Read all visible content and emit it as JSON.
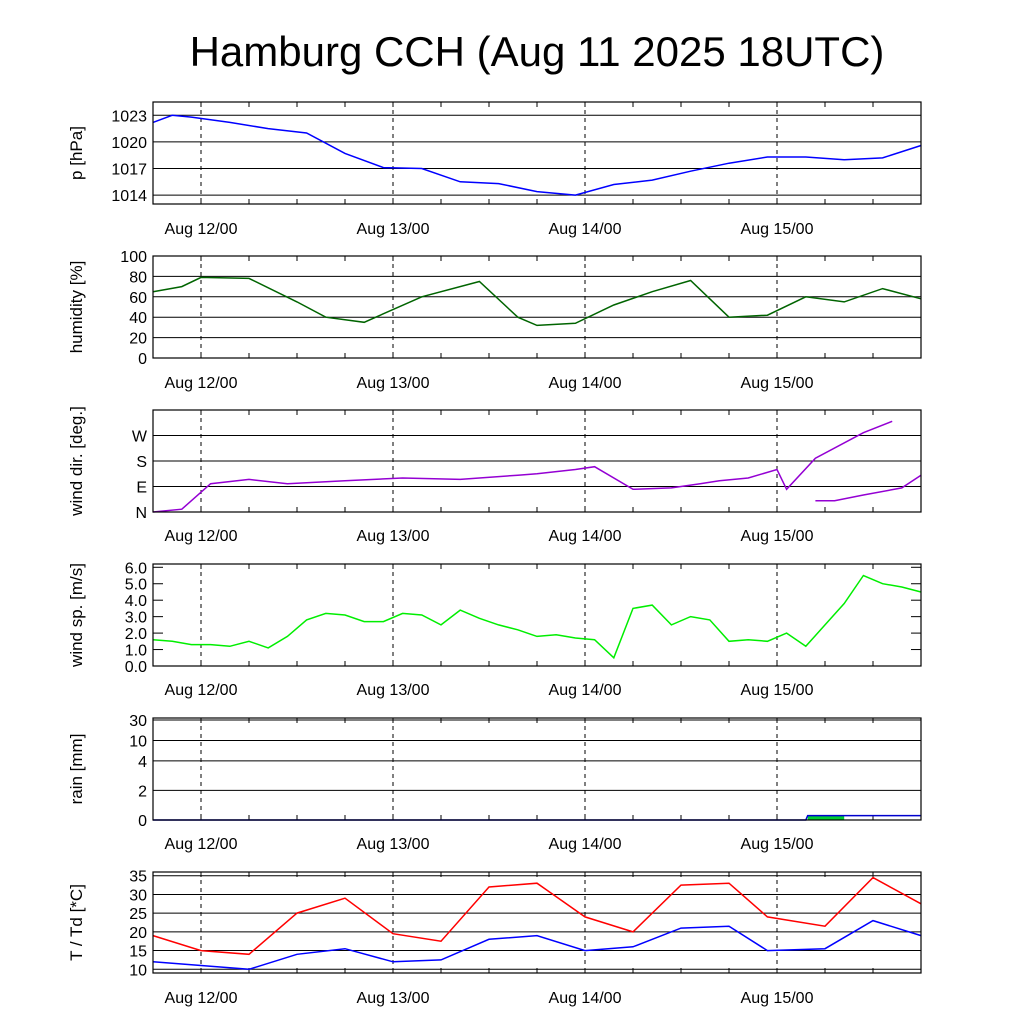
{
  "title": "Hamburg CCH (Aug 11 2025 18UTC)",
  "x_tick_labels": [
    "Aug 12/00",
    "Aug 13/00",
    "Aug 14/00",
    "Aug 15/00"
  ],
  "colors": {
    "pressure": "#0000ff",
    "humidity": "#006400",
    "wind_dir": "#9400d3",
    "wind_speed": "#00ee00",
    "rain_line": "#0000cd",
    "rain_fill": "#00cc33",
    "temperature": "#ff0000",
    "dewpoint": "#0000ff"
  },
  "chart_data": [
    {
      "type": "line",
      "ylabel": "p [hPa]",
      "ylim": [
        1013,
        1024.5
      ],
      "yticks": [
        1014,
        1017,
        1020,
        1023
      ],
      "ytick_labels": [
        "1014",
        "1017",
        "1020",
        "1023"
      ],
      "grid": "horizontal",
      "series": [
        {
          "x": [
            0,
            0.1,
            0.2,
            0.4,
            0.6,
            0.8,
            1.0,
            1.2,
            1.4,
            1.6,
            1.8,
            2.0,
            2.2,
            2.4,
            2.6,
            2.8,
            3.0,
            3.2,
            3.4,
            3.6,
            3.8,
            4.0
          ],
          "y": [
            1022.2,
            1023.0,
            1022.8,
            1022.2,
            1021.5,
            1021.0,
            1018.7,
            1017.1,
            1017.0,
            1015.5,
            1015.3,
            1014.4,
            1014.0,
            1015.2,
            1015.7,
            1016.7,
            1017.6,
            1018.3,
            1018.3,
            1018.0,
            1018.2,
            1019.6
          ]
        }
      ]
    },
    {
      "type": "line",
      "ylabel": "humidity [%]",
      "ylim": [
        0,
        100
      ],
      "yticks": [
        0,
        20,
        40,
        60,
        80,
        100
      ],
      "ytick_labels": [
        "0",
        "20",
        "40",
        "60",
        "80",
        "100"
      ],
      "grid": "horizontal",
      "series": [
        {
          "x": [
            0,
            0.15,
            0.25,
            0.5,
            0.75,
            0.9,
            1.1,
            1.4,
            1.7,
            1.9,
            2.0,
            2.2,
            2.4,
            2.6,
            2.8,
            3.0,
            3.2,
            3.4,
            3.6,
            3.8,
            4.0
          ],
          "y": [
            65,
            70,
            79,
            78,
            55,
            40,
            35,
            60,
            75,
            40,
            32,
            34,
            52,
            65,
            76,
            40,
            42,
            60,
            55,
            68,
            58
          ]
        }
      ]
    },
    {
      "type": "line",
      "ylabel": "wind dir. [deg.]",
      "ylim": [
        0,
        360
      ],
      "yticks": [
        0,
        90,
        180,
        270
      ],
      "ytick_labels": [
        "N",
        "E",
        "S",
        "W"
      ],
      "grid": "horizontal",
      "series": [
        {
          "name": "",
          "x": [
            0,
            0.15,
            0.3,
            0.5,
            0.7,
            1.0,
            1.3,
            1.6,
            1.9,
            2.0,
            2.2,
            2.3,
            2.5,
            2.7,
            2.85,
            2.95,
            3.1,
            3.25,
            3.3,
            3.45,
            3.7,
            3.85
          ],
          "y": [
            0,
            10,
            100,
            115,
            100,
            110,
            120,
            115,
            130,
            135,
            150,
            160,
            80,
            85,
            100,
            110,
            120,
            150,
            80,
            190,
            280,
            320
          ]
        },
        {
          "name": "",
          "x": [
            3.45,
            3.55,
            3.7,
            3.9,
            4.0
          ],
          "y": [
            40,
            40,
            60,
            85,
            130
          ]
        }
      ]
    },
    {
      "type": "line",
      "ylabel": "wind sp. [m/s]",
      "ylim": [
        0,
        6.2
      ],
      "yticks": [
        0,
        1,
        2,
        3,
        4,
        5,
        6
      ],
      "ytick_labels": [
        "0.0",
        "1.0",
        "2.0",
        "3.0",
        "4.0",
        "5.0",
        "6.0"
      ],
      "grid": "none",
      "series": [
        {
          "x": [
            0,
            0.1,
            0.2,
            0.3,
            0.4,
            0.5,
            0.6,
            0.7,
            0.8,
            0.9,
            1.0,
            1.1,
            1.2,
            1.3,
            1.4,
            1.5,
            1.6,
            1.7,
            1.8,
            1.9,
            2.0,
            2.1,
            2.2,
            2.3,
            2.4,
            2.5,
            2.6,
            2.7,
            2.8,
            2.9,
            3.0,
            3.1,
            3.2,
            3.3,
            3.4,
            3.5,
            3.6,
            3.7,
            3.8,
            3.9,
            4.0
          ],
          "y": [
            1.6,
            1.5,
            1.3,
            1.3,
            1.2,
            1.5,
            1.1,
            1.8,
            2.8,
            3.2,
            3.1,
            2.7,
            2.7,
            3.2,
            3.1,
            2.5,
            3.4,
            2.9,
            2.5,
            2.2,
            1.8,
            1.9,
            1.7,
            1.6,
            0.5,
            3.5,
            3.7,
            2.5,
            3.0,
            2.8,
            1.5,
            1.6,
            1.5,
            2.0,
            1.2,
            2.5,
            3.8,
            5.5,
            5.0,
            4.8,
            4.5
          ]
        }
      ]
    },
    {
      "type": "area",
      "ylabel": "rain [mm]",
      "ylim": [
        0,
        30
      ],
      "yticks": [
        0,
        2,
        4,
        10,
        30
      ],
      "ytick_labels": [
        "0",
        "2",
        "4",
        "10",
        "30"
      ],
      "grid": "horizontal",
      "series": [
        {
          "x": [
            0,
            3.4,
            3.41,
            4.0
          ],
          "y": [
            0,
            0,
            0.3,
            0.3
          ]
        }
      ]
    },
    {
      "type": "line",
      "ylabel": "T / Td [*C]",
      "ylim": [
        9,
        36
      ],
      "yticks": [
        10,
        15,
        20,
        25,
        30,
        35
      ],
      "ytick_labels": [
        "10",
        "15",
        "20",
        "25",
        "30",
        "35"
      ],
      "grid": "horizontal",
      "series": [
        {
          "name": "",
          "x": [
            0,
            0.25,
            0.5,
            0.75,
            1.0,
            1.25,
            1.5,
            1.75,
            2.0,
            2.25,
            2.5,
            2.75,
            3.0,
            3.2,
            3.5,
            3.75,
            4.0
          ],
          "y": [
            19.0,
            15.0,
            14.0,
            25.0,
            29.0,
            19.5,
            17.5,
            32.0,
            33.0,
            24.0,
            20.0,
            32.5,
            33.0,
            24.0,
            21.5,
            34.5,
            27.5
          ]
        },
        {
          "name": "",
          "x": [
            0,
            0.25,
            0.5,
            0.75,
            1.0,
            1.25,
            1.5,
            1.75,
            2.0,
            2.25,
            2.5,
            2.75,
            3.0,
            3.2,
            3.5,
            3.75,
            4.0
          ],
          "y": [
            12.0,
            11.0,
            10.0,
            14.0,
            15.5,
            12.0,
            12.5,
            18.0,
            19.0,
            15.0,
            16.0,
            21.0,
            21.5,
            15.0,
            15.5,
            23.0,
            19.0
          ]
        }
      ]
    }
  ]
}
